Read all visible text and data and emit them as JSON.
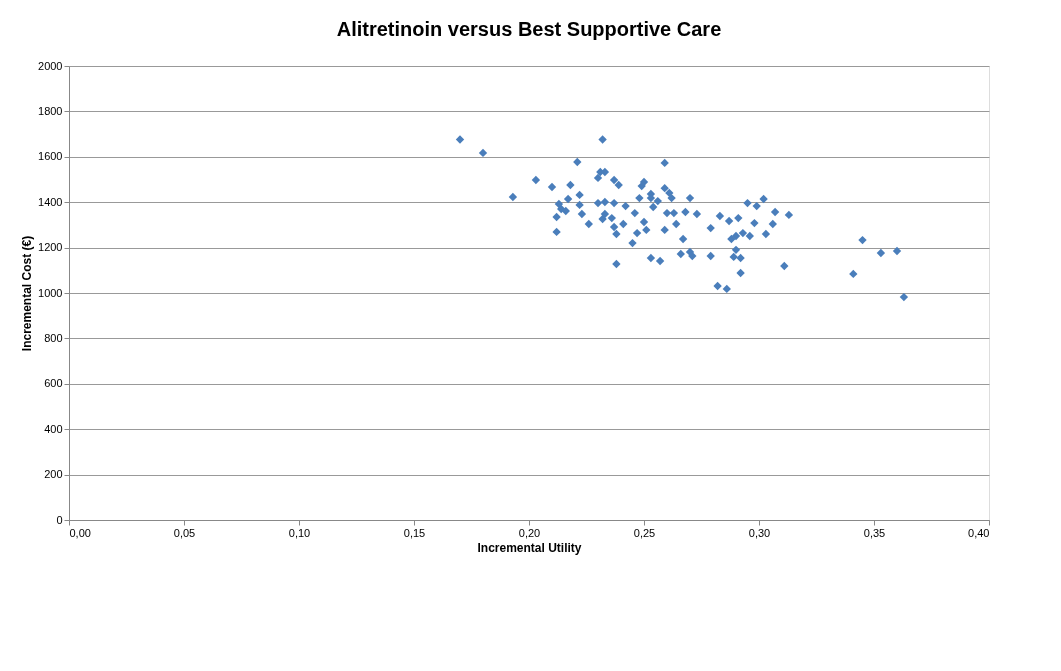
{
  "chart_data": {
    "type": "scatter",
    "title": "Alitretinoin versus Best Supportive Care",
    "xlabel": "Incremental Utility",
    "ylabel": "Incremental Cost (€)",
    "x": [
      0.17,
      0.18,
      0.193,
      0.203,
      0.21,
      0.212,
      0.212,
      0.214,
      0.216,
      0.213,
      0.218,
      0.217,
      0.221,
      0.222,
      0.222,
      0.223,
      0.226,
      0.23,
      0.231,
      0.23,
      0.232,
      0.232,
      0.233,
      0.233,
      0.233,
      0.236,
      0.237,
      0.237,
      0.237,
      0.238,
      0.238,
      0.239,
      0.241,
      0.242,
      0.245,
      0.246,
      0.247,
      0.248,
      0.249,
      0.25,
      0.25,
      0.251,
      0.253,
      0.253,
      0.253,
      0.254,
      0.256,
      0.257,
      0.259,
      0.259,
      0.259,
      0.26,
      0.261,
      0.262,
      0.263,
      0.264,
      0.266,
      0.267,
      0.268,
      0.27,
      0.27,
      0.271,
      0.273,
      0.279,
      0.279,
      0.282,
      0.283,
      0.286,
      0.287,
      0.288,
      0.289,
      0.29,
      0.291,
      0.29,
      0.292,
      0.292,
      0.293,
      0.295,
      0.296,
      0.299,
      0.298,
      0.302,
      0.303,
      0.307,
      0.306,
      0.311,
      0.313,
      0.341,
      0.345,
      0.353,
      0.36,
      0.363
    ],
    "series": [
      {
        "color": "#4a7ebb",
        "values": [
          1676,
          1617,
          1423,
          1498,
          1467,
          1269,
          1335,
          1370,
          1361,
          1392,
          1476,
          1414,
          1577,
          1432,
          1388,
          1348,
          1304,
          1507,
          1533,
          1396,
          1326,
          1676,
          1348,
          1533,
          1401,
          1330,
          1498,
          1396,
          1291,
          1128,
          1260,
          1476,
          1304,
          1383,
          1220,
          1352,
          1264,
          1418,
          1471,
          1489,
          1313,
          1278,
          1436,
          1418,
          1154,
          1379,
          1405,
          1141,
          1278,
          1573,
          1462,
          1352,
          1441,
          1418,
          1352,
          1304,
          1172,
          1238,
          1357,
          1181,
          1418,
          1163,
          1348,
          1163,
          1286,
          1031,
          1339,
          1018,
          1317,
          1238,
          1159,
          1190,
          1330,
          1251,
          1154,
          1088,
          1264,
          1396,
          1251,
          1383,
          1308,
          1414,
          1260,
          1357,
          1304,
          1119,
          1344,
          1084,
          1233,
          1176,
          1185,
          982
        ]
      }
    ],
    "xlim": [
      0,
      0.4
    ],
    "xticks": [
      {
        "value": 0,
        "label": "0,00"
      },
      {
        "value": 0.05,
        "label": "0,05"
      },
      {
        "value": 0.1,
        "label": "0,10"
      },
      {
        "value": 0.15,
        "label": "0,15"
      },
      {
        "value": 0.2,
        "label": "0,20"
      },
      {
        "value": 0.25,
        "label": "0,25"
      },
      {
        "value": 0.3,
        "label": "0,30"
      },
      {
        "value": 0.35,
        "label": "0,35"
      },
      {
        "value": 0.4,
        "label": "0,40"
      }
    ],
    "ylim": [
      0,
      2000
    ],
    "yticks": [
      0,
      200,
      400,
      600,
      800,
      1000,
      1200,
      1400,
      1600,
      1800,
      2000
    ],
    "grid": "y",
    "marker": "diamond"
  }
}
